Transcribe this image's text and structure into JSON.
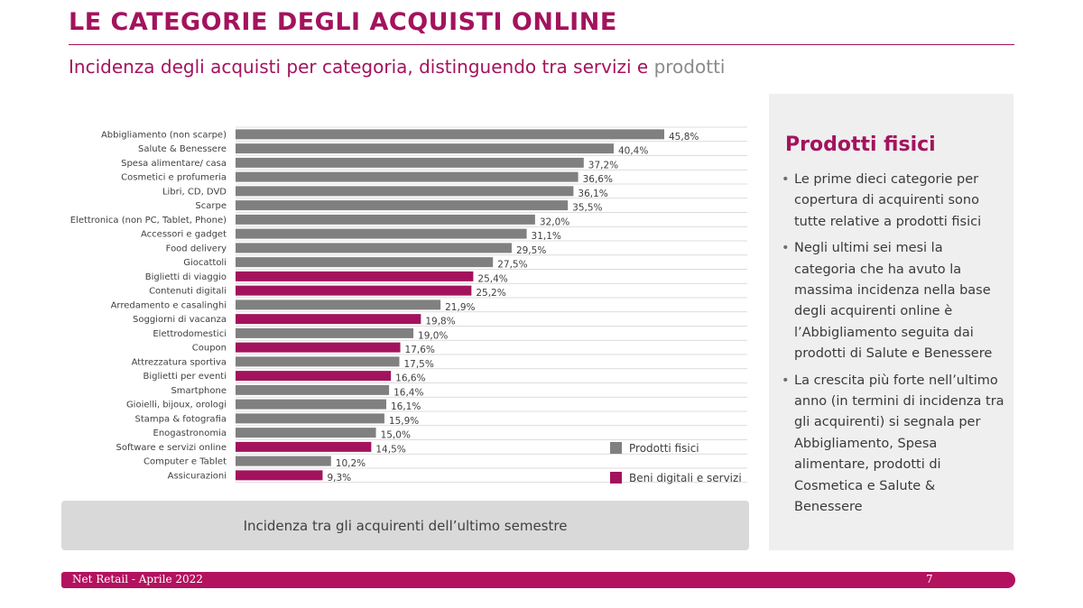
{
  "header": {
    "title": "LE CATEGORIE DEGLI ACQUISTI ONLINE",
    "subtitle_main": "Incidenza degli acquisti per categoria, distinguendo tra servizi e ",
    "subtitle_highlight": "prodotti"
  },
  "colors": {
    "accent": "#a3135d",
    "physical": "#808080",
    "digital": "#a3135d"
  },
  "chart_data": {
    "type": "bar",
    "orientation": "horizontal",
    "title": "",
    "xlabel": "",
    "ylabel": "",
    "xlim": [
      0,
      50
    ],
    "grid": "horizontal row lines",
    "legend_position": "bottom-right",
    "categories": [
      "Abbigliamento (non scarpe)",
      "Salute & Benessere",
      "Spesa alimentare/ casa",
      "Cosmetici e profumeria",
      "Libri, CD, DVD",
      "Scarpe",
      "Elettronica (non PC, Tablet, Phone)",
      "Accessori e gadget",
      "Food delivery",
      "Giocattoli",
      "Biglietti di viaggio",
      "Contenuti digitali",
      "Arredamento e casalinghi",
      "Soggiorni di vacanza",
      "Elettrodomestici",
      "Coupon",
      "Attrezzatura sportiva",
      "Biglietti per eventi",
      "Smartphone",
      "Gioielli, bijoux, orologi",
      "Stampa & fotografia",
      "Enogastronomia",
      "Software e servizi online",
      "Computer e Tablet",
      "Assicurazioni"
    ],
    "values": [
      45.8,
      40.4,
      37.2,
      36.6,
      36.1,
      35.5,
      32.0,
      31.1,
      29.5,
      27.5,
      25.4,
      25.2,
      21.9,
      19.8,
      19.0,
      17.6,
      17.5,
      16.6,
      16.4,
      16.1,
      15.9,
      15.0,
      14.5,
      10.2,
      9.3
    ],
    "value_labels": [
      "45,8%",
      "40,4%",
      "37,2%",
      "36,6%",
      "36,1%",
      "35,5%",
      "32,0%",
      "31,1%",
      "29,5%",
      "27,5%",
      "25,4%",
      "25,2%",
      "21,9%",
      "19,8%",
      "19,0%",
      "17,6%",
      "17,5%",
      "16,6%",
      "16,4%",
      "16,1%",
      "15,9%",
      "15,0%",
      "14,5%",
      "10,2%",
      "9,3%"
    ],
    "groups": [
      "physical",
      "physical",
      "physical",
      "physical",
      "physical",
      "physical",
      "physical",
      "physical",
      "physical",
      "physical",
      "digital",
      "digital",
      "physical",
      "digital",
      "physical",
      "digital",
      "physical",
      "digital",
      "physical",
      "physical",
      "physical",
      "physical",
      "digital",
      "physical",
      "digital"
    ],
    "legend": [
      {
        "key": "physical",
        "label": "Prodotti fisici"
      },
      {
        "key": "digital",
        "label": "Beni digitali e servizi"
      }
    ]
  },
  "caption": "Incidenza tra gli acquirenti dell’ultimo semestre",
  "side_panel": {
    "title": "Prodotti fisici",
    "bullet_symbol": "•",
    "bullets": [
      "Le prime dieci categorie per copertura di acquirenti sono tutte relative a prodotti fisici",
      "Negli ultimi sei mesi la categoria che ha avuto la massima incidenza nella base degli acquirenti online è l’Abbigliamento seguita dai prodotti di Salute e Benessere",
      "La crescita più forte nell’ultimo anno (in termini di incidenza tra gli acquirenti) si segnala per Abbigliamento, Spesa alimentare, prodotti di Cosmetica e Salute & Benessere"
    ]
  },
  "footer": {
    "left": "Net Retail - Aprile 2022",
    "page": "7"
  }
}
